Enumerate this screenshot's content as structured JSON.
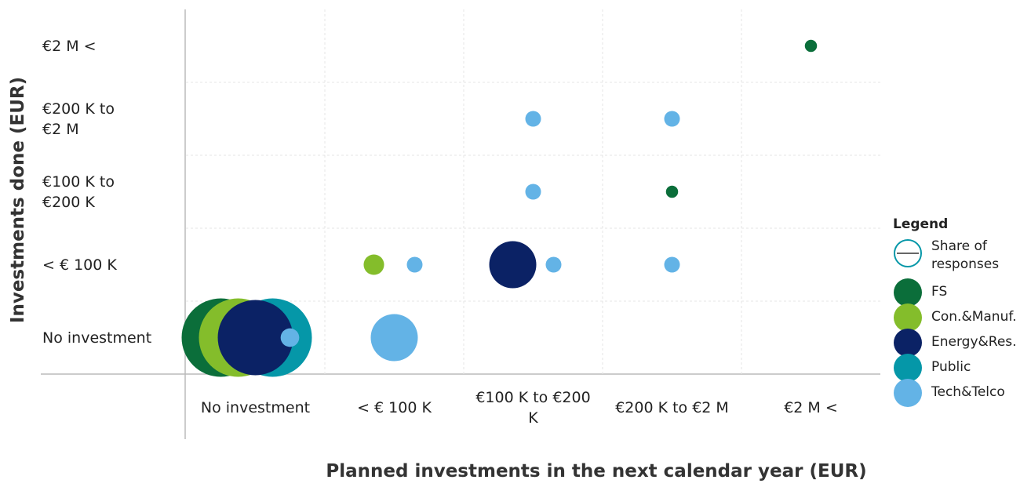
{
  "chart_data": {
    "type": "bubble",
    "xlabel": "Planned investments in the next calendar year (EUR)",
    "ylabel": "Investments done (EUR)",
    "x_categories": [
      "No investment",
      "< € 100 K",
      "€100 K to €200 K",
      "€200 K to €2 M",
      "€2 M <"
    ],
    "y_categories": [
      "No investment",
      "< € 100 K",
      "€100 K to €200 K",
      "€200 K to €2 M",
      "€2 M <"
    ],
    "legend_title": "Legend",
    "size_legend": "Share of responses",
    "grid": true,
    "series": [
      {
        "name": "FS",
        "color": "#0b6e3a",
        "x": [
          "No investment",
          "€200 K to €2 M",
          "€2 M <"
        ],
        "y": [
          "No investment",
          "€100 K to €200 K",
          "€2 M <"
        ],
        "sizes": [
          25,
          0.6,
          0.6
        ]
      },
      {
        "name": "Con.&Manuf.",
        "color": "#84bd2b",
        "x": [
          "No investment",
          "< € 100 K"
        ],
        "y": [
          "No investment",
          "< € 100 K"
        ],
        "sizes": [
          25,
          1.7
        ]
      },
      {
        "name": "Energy&Res.",
        "color": "#0b2265",
        "x": [
          "No investment",
          "€100 K to €200 K"
        ],
        "y": [
          "No investment",
          "< € 100 K"
        ],
        "sizes": [
          23,
          9
        ]
      },
      {
        "name": "Public",
        "color": "#0597a8",
        "x": [
          "No investment"
        ],
        "y": [
          "No investment"
        ],
        "sizes": [
          25
        ]
      },
      {
        "name": "Tech&Telco",
        "color": "#63b3e6",
        "x": [
          "No investment",
          "< € 100 K",
          "< € 100 K",
          "€100 K to €200 K",
          "€200 K to €2 M",
          "€100 K to €200 K",
          "€100 K to €200 K",
          "€200 K to €2 M"
        ],
        "y": [
          "No investment",
          "No investment",
          "< € 100 K",
          "< € 100 K",
          "< € 100 K",
          "€100 K to €200 K",
          "€200 K to €2 M",
          "€200 K to €2 M"
        ],
        "sizes": [
          1.4,
          9,
          1,
          1,
          1,
          1,
          1,
          1
        ]
      }
    ]
  }
}
